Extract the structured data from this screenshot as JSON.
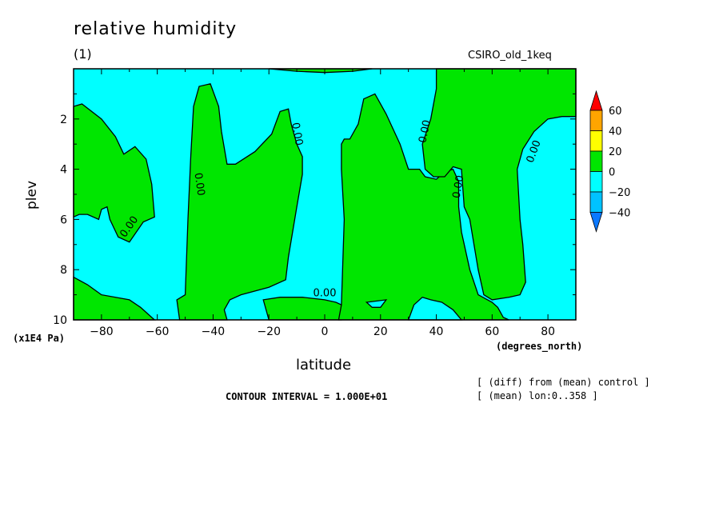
{
  "chart_data": {
    "type": "contour",
    "title": "relative humidity",
    "subtitle": "(1)",
    "model": "CSIRO_old_1keq",
    "xlabel": "latitude",
    "xunit": "(degrees_north)",
    "ylabel": "plev",
    "yunit": "(x1E4 Pa)",
    "xlim": [
      -90,
      90
    ],
    "ylim": [
      10,
      0
    ],
    "xticks": [
      -80,
      -60,
      -40,
      -20,
      0,
      20,
      40,
      60,
      80
    ],
    "yticks": [
      2,
      4,
      6,
      8,
      10
    ],
    "contour_interval_label": "CONTOUR INTERVAL = 1.000E+01",
    "notes": [
      "[ (diff) from (mean) control ]",
      "[ (mean) lon:0..358 ]"
    ],
    "contour_label": "0.00",
    "colorbar": {
      "levels": [
        -40,
        -20,
        0,
        20,
        40,
        60
      ],
      "colors": [
        "#0a78ff",
        "#00c2ff",
        "#00ffff",
        "#00e600",
        "#ffff00",
        "#ffa500",
        "#ff0000"
      ]
    },
    "background_band": "-20 to 0",
    "regions_0_to_20": [
      {
        "name": "south-polar",
        "points": [
          [
            -90,
            1.5
          ],
          [
            -87,
            1.4
          ],
          [
            -80,
            2
          ],
          [
            -75,
            2.7
          ],
          [
            -72,
            3.4
          ],
          [
            -68,
            3.1
          ],
          [
            -64,
            3.6
          ],
          [
            -62,
            4.6
          ],
          [
            -61,
            5.9
          ],
          [
            -65,
            6.1
          ],
          [
            -70,
            6.9
          ],
          [
            -74,
            6.7
          ],
          [
            -77,
            6.0
          ],
          [
            -78,
            5.5
          ],
          [
            -80,
            5.6
          ],
          [
            -81,
            6.0
          ],
          [
            -85,
            5.8
          ],
          [
            -88,
            5.8
          ],
          [
            -90,
            5.9
          ]
        ]
      },
      {
        "name": "south-polar-surface",
        "points": [
          [
            -90,
            8.3
          ],
          [
            -85,
            8.6
          ],
          [
            -80,
            9.0
          ],
          [
            -70,
            9.2
          ],
          [
            -66,
            9.5
          ],
          [
            -62,
            9.9
          ],
          [
            -61,
            10
          ],
          [
            -90,
            10
          ]
        ]
      },
      {
        "name": "southern-midlat",
        "points": [
          [
            -52,
            10
          ],
          [
            -53,
            9.2
          ],
          [
            -50,
            9.0
          ],
          [
            -49,
            6.0
          ],
          [
            -48,
            3.5
          ],
          [
            -47,
            1.5
          ],
          [
            -45,
            0.7
          ],
          [
            -41,
            0.6
          ],
          [
            -38,
            1.5
          ],
          [
            -37,
            2.5
          ],
          [
            -35,
            3.8
          ],
          [
            -32,
            3.8
          ],
          [
            -25,
            3.3
          ],
          [
            -19,
            2.6
          ],
          [
            -16,
            1.7
          ],
          [
            -13,
            1.6
          ],
          [
            -12,
            2.2
          ],
          [
            -10,
            3.0
          ],
          [
            -8,
            3.5
          ],
          [
            -8,
            4.2
          ],
          [
            -10,
            5.5
          ],
          [
            -13,
            7.5
          ],
          [
            -14,
            8.4
          ],
          [
            -20,
            8.7
          ],
          [
            -30,
            9.0
          ],
          [
            -34,
            9.2
          ],
          [
            -36,
            9.6
          ],
          [
            -35,
            10
          ]
        ]
      },
      {
        "name": "equatorial-surface",
        "points": [
          [
            -20,
            10
          ],
          [
            -22,
            9.2
          ],
          [
            -16,
            9.1
          ],
          [
            -8,
            9.1
          ],
          [
            0,
            9.2
          ],
          [
            4,
            9.3
          ],
          [
            6,
            9.4
          ],
          [
            6,
            10
          ]
        ]
      },
      {
        "name": "northern-tropics",
        "points": [
          [
            5,
            10
          ],
          [
            6,
            9.4
          ],
          [
            7,
            6.0
          ],
          [
            6,
            4.0
          ],
          [
            6,
            3.0
          ],
          [
            7,
            2.8
          ],
          [
            9,
            2.8
          ],
          [
            12,
            2.2
          ],
          [
            14,
            1.2
          ],
          [
            18,
            1.0
          ],
          [
            22,
            1.8
          ],
          [
            27,
            3.0
          ],
          [
            30,
            4.0
          ],
          [
            34,
            4.0
          ],
          [
            36,
            4.3
          ],
          [
            40,
            4.4
          ],
          [
            43,
            4.1
          ],
          [
            46,
            4.0
          ],
          [
            48,
            4.5
          ],
          [
            48,
            5.5
          ],
          [
            49,
            6.5
          ],
          [
            52,
            8.0
          ],
          [
            55,
            9.0
          ],
          [
            60,
            9.3
          ],
          [
            62,
            9.5
          ],
          [
            64,
            9.9
          ],
          [
            66,
            10
          ]
        ]
      },
      {
        "name": "northern-high",
        "points": [
          [
            40,
            0
          ],
          [
            90,
            0
          ],
          [
            90,
            1.9
          ],
          [
            85,
            1.9
          ],
          [
            80,
            2.0
          ],
          [
            75,
            2.5
          ],
          [
            71,
            3.2
          ],
          [
            69,
            4.0
          ],
          [
            70,
            6.0
          ],
          [
            71,
            7.0
          ],
          [
            72,
            8.5
          ],
          [
            70,
            9.0
          ],
          [
            66,
            9.1
          ],
          [
            60,
            9.2
          ],
          [
            57,
            9.0
          ],
          [
            55,
            8.0
          ],
          [
            52,
            6.0
          ],
          [
            50,
            5.5
          ],
          [
            49,
            4.0
          ],
          [
            46,
            3.9
          ],
          [
            43,
            4.3
          ],
          [
            39,
            4.3
          ],
          [
            36,
            4.0
          ],
          [
            35,
            3.0
          ],
          [
            38,
            2.0
          ],
          [
            40,
            0.8
          ]
        ]
      },
      {
        "name": "north-pole-top",
        "points": [
          [
            -20,
            0
          ],
          [
            17,
            0
          ],
          [
            10,
            0.1
          ],
          [
            0,
            0.15
          ],
          [
            -10,
            0.1
          ]
        ]
      }
    ],
    "regions_negative_islands": [
      {
        "name": "island-30N",
        "points": [
          [
            30,
            10
          ],
          [
            32,
            9.4
          ],
          [
            35,
            9.1
          ],
          [
            38,
            9.2
          ],
          [
            42,
            9.3
          ],
          [
            46,
            9.6
          ],
          [
            49,
            10
          ]
        ]
      },
      {
        "name": "island-sfc-10N",
        "points": [
          [
            15,
            9.3
          ],
          [
            22,
            9.2
          ],
          [
            20,
            9.5
          ],
          [
            17,
            9.5
          ]
        ]
      }
    ],
    "contour_label_positions": [
      {
        "lat": -70,
        "p": 6.3,
        "angle": -55
      },
      {
        "lat": -45,
        "p": 4.6,
        "angle": 82
      },
      {
        "lat": -10,
        "p": 2.6,
        "angle": 80
      },
      {
        "lat": 36,
        "p": 2.5,
        "angle": -78
      },
      {
        "lat": 48,
        "p": 4.7,
        "angle": -80
      },
      {
        "lat": 75,
        "p": 3.3,
        "angle": -70
      },
      {
        "lat": 0,
        "p": 8.95,
        "angle": 0
      }
    ]
  }
}
